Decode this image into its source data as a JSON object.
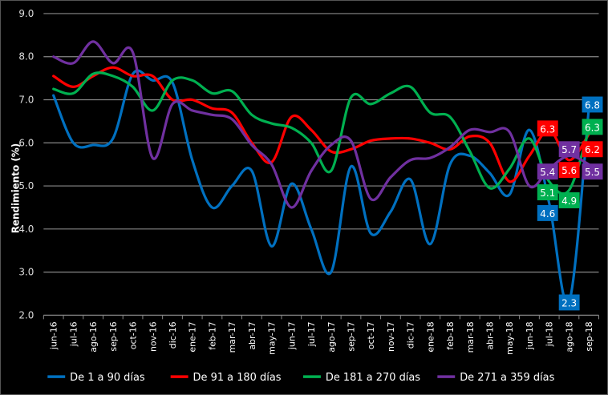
{
  "chart_data": {
    "type": "line",
    "title": "",
    "xlabel": "",
    "ylabel": "Rendimiento (%)",
    "ylim": [
      2.0,
      9.0
    ],
    "yticks": [
      "2.0",
      "3.0",
      "4.0",
      "5.0",
      "6.0",
      "7.0",
      "8.0",
      "9.0"
    ],
    "grid": true,
    "legend_position": "bottom",
    "categories": [
      "jun-16",
      "jul-16",
      "ago-16",
      "sep-16",
      "oct-16",
      "nov-16",
      "dic-16",
      "ene-17",
      "feb-17",
      "mar-17",
      "abr-17",
      "may-17",
      "jun-17",
      "jul-17",
      "ago-17",
      "sep-17",
      "oct-17",
      "nov-17",
      "dic-17",
      "ene-18",
      "feb-18",
      "mar-18",
      "abr-18",
      "may-18",
      "jun-18",
      "jul-18",
      "ago-18",
      "sep-18"
    ],
    "series": [
      {
        "name": "De 1 a 90 días",
        "color": "#0070C0",
        "values": [
          7.1,
          6.0,
          5.95,
          6.1,
          7.6,
          7.45,
          7.4,
          5.6,
          4.5,
          5.0,
          5.35,
          3.6,
          5.05,
          4.0,
          3.0,
          5.45,
          3.9,
          4.4,
          5.15,
          3.65,
          5.5,
          5.7,
          5.3,
          4.8,
          6.3,
          4.6,
          2.3,
          6.8
        ],
        "labels": [
          "4.6",
          "2.3",
          "6.8"
        ]
      },
      {
        "name": "De 91 a 180 días",
        "color": "#FF0000",
        "values": [
          7.55,
          7.3,
          7.55,
          7.75,
          7.55,
          7.55,
          7.0,
          7.0,
          6.8,
          6.7,
          6.0,
          5.55,
          6.6,
          6.3,
          5.8,
          5.85,
          6.05,
          6.1,
          6.1,
          6.0,
          5.85,
          6.15,
          6.0,
          5.1,
          5.7,
          6.3,
          5.6,
          6.2
        ],
        "labels": [
          "6.3",
          "5.6",
          "6.2"
        ]
      },
      {
        "name": "De 181 a 270 días",
        "color": "#00B050",
        "values": [
          7.25,
          7.15,
          7.6,
          7.55,
          7.3,
          6.75,
          7.45,
          7.45,
          7.15,
          7.2,
          6.65,
          6.45,
          6.35,
          6.0,
          5.35,
          7.05,
          6.9,
          7.15,
          7.3,
          6.7,
          6.6,
          5.8,
          4.95,
          5.4,
          6.1,
          5.1,
          4.9,
          6.3
        ],
        "labels": [
          "5.1",
          "4.9",
          "6.3"
        ]
      },
      {
        "name": "De 271 a 359 días",
        "color": "#7030A0",
        "values": [
          8.0,
          7.85,
          8.35,
          7.85,
          8.1,
          5.65,
          6.9,
          6.75,
          6.65,
          6.55,
          5.95,
          5.5,
          4.5,
          5.35,
          5.95,
          6.05,
          4.7,
          5.2,
          5.6,
          5.65,
          5.9,
          6.3,
          6.25,
          6.25,
          5.0,
          5.4,
          5.7,
          5.5
        ],
        "labels": [
          "5.4",
          "5.7",
          "5.5"
        ]
      }
    ]
  }
}
